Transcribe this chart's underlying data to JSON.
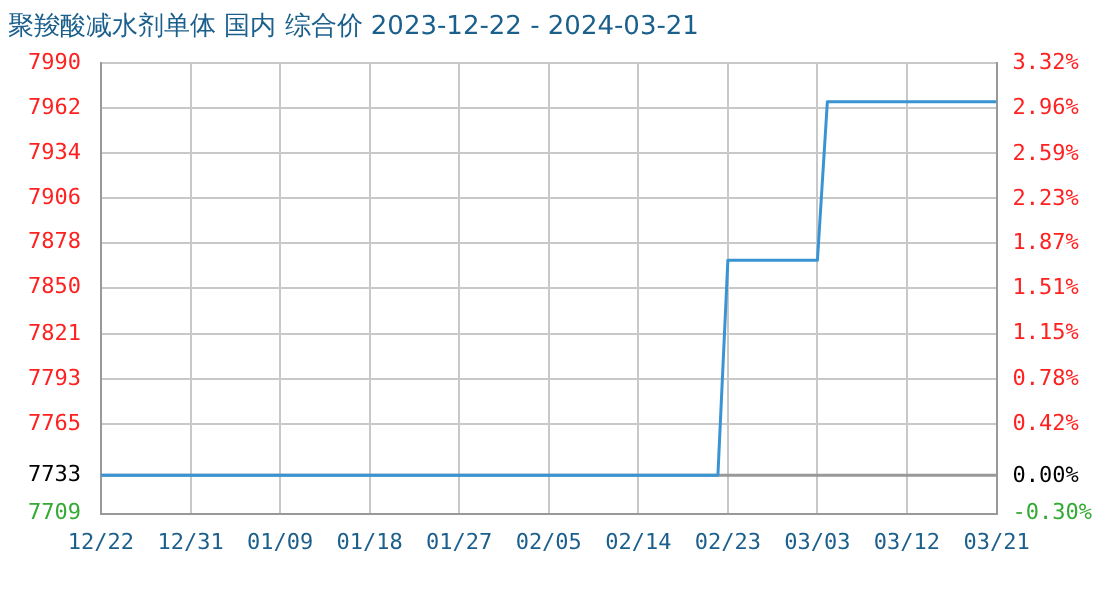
{
  "chart_data": {
    "type": "line",
    "title": "聚羧酸减水剂单体 国内 综合价 2023-12-22 - 2024-03-21",
    "x": [
      "2023-12-22",
      "2024-02-22",
      "2024-02-23",
      "2024-03-03",
      "2024-03-04",
      "2024-03-21"
    ],
    "series": [
      {
        "color": "#3a94d4",
        "values": [
          7733,
          7733,
          7867,
          7867,
          7966,
          7966
        ]
      }
    ],
    "xlim": [
      "2023-12-22",
      "2024-03-21"
    ],
    "xticks": [
      {
        "value": "2023-12-22",
        "label": "12/22"
      },
      {
        "value": "2023-12-31",
        "label": "12/31"
      },
      {
        "value": "2024-01-09",
        "label": "01/09"
      },
      {
        "value": "2024-01-18",
        "label": "01/18"
      },
      {
        "value": "2024-01-27",
        "label": "01/27"
      },
      {
        "value": "2024-02-05",
        "label": "02/05"
      },
      {
        "value": "2024-02-14",
        "label": "02/14"
      },
      {
        "value": "2024-02-23",
        "label": "02/23"
      },
      {
        "value": "2024-03-03",
        "label": "03/03"
      },
      {
        "value": "2024-03-12",
        "label": "03/12"
      },
      {
        "value": "2024-03-21",
        "label": "03/21"
      }
    ],
    "ylim": [
      7709,
      7990
    ],
    "yticks": [
      7709,
      7733,
      7765,
      7793,
      7821,
      7850,
      7878,
      7906,
      7934,
      7962,
      7990
    ],
    "y2lim": [
      -0.3,
      3.32
    ],
    "y2ticks": [
      {
        "value": -0.3,
        "label": "-0.30%"
      },
      {
        "value": 0,
        "label": "0.00%"
      },
      {
        "value": 0.42,
        "label": "0.42%"
      },
      {
        "value": 0.78,
        "label": "0.78%"
      },
      {
        "value": 1.15,
        "label": "1.15%"
      },
      {
        "value": 1.51,
        "label": "1.51%"
      },
      {
        "value": 1.87,
        "label": "1.87%"
      },
      {
        "value": 2.23,
        "label": "2.23%"
      },
      {
        "value": 2.59,
        "label": "2.59%"
      },
      {
        "value": 2.96,
        "label": "2.96%"
      },
      {
        "value": 3.32,
        "label": "3.32%"
      }
    ],
    "ref_lines": [
      {
        "axis": "y",
        "value": 7733,
        "color": "#999999"
      }
    ],
    "grid": true,
    "legend": false,
    "marker": "none",
    "line_style": "solid"
  }
}
